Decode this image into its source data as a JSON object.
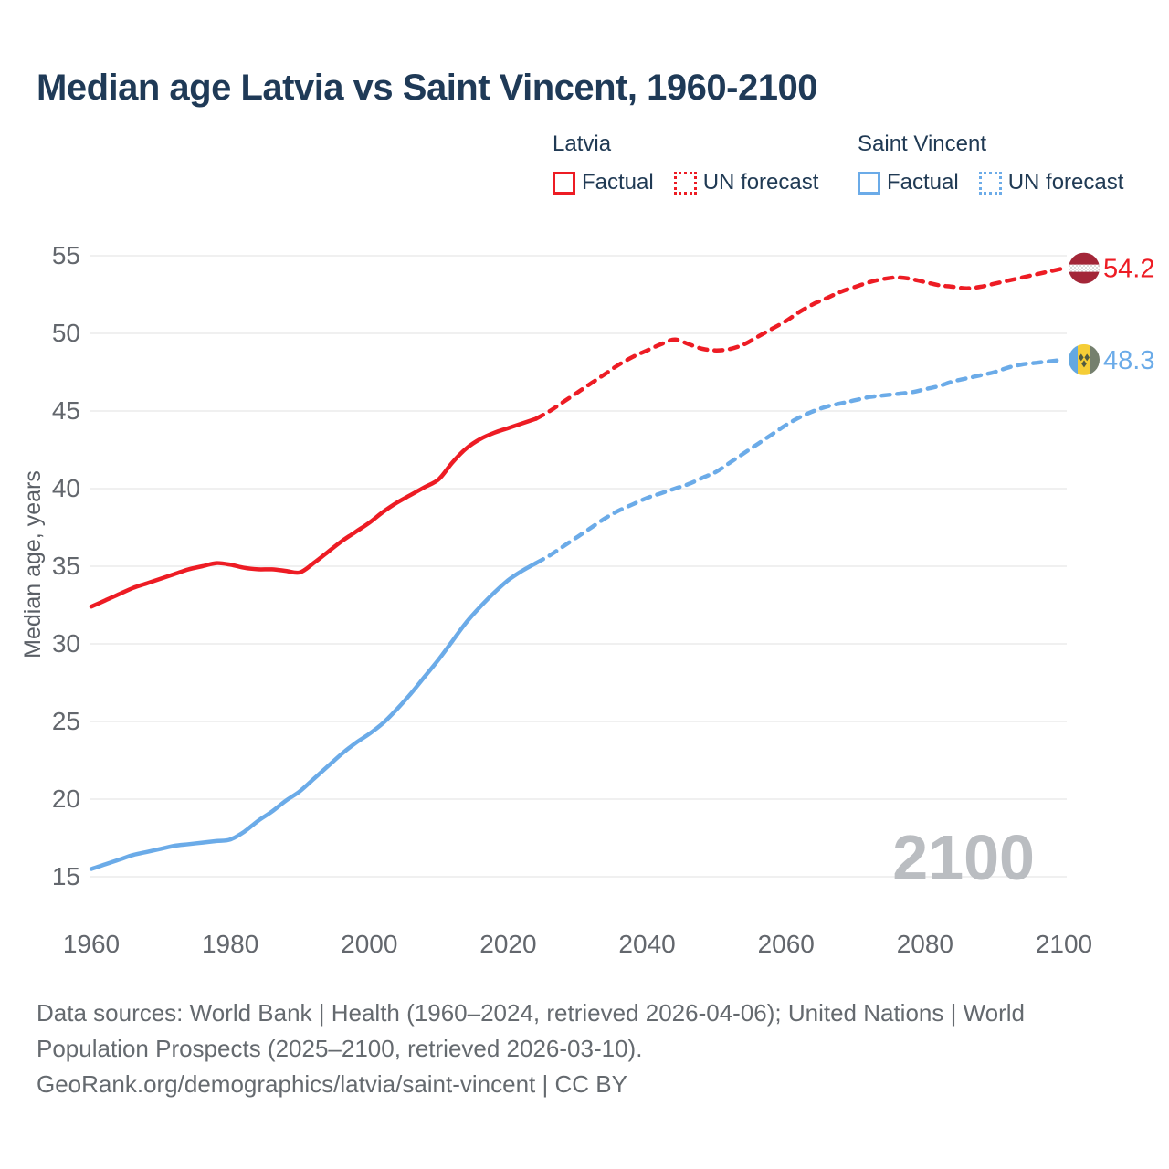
{
  "title": "Median age Latvia vs Saint Vincent, 1960-2100",
  "legend": {
    "groups": [
      {
        "country": "Latvia",
        "factual_label": "Factual",
        "forecast_label": "UN forecast",
        "color": "#ed1c24"
      },
      {
        "country": "Saint Vincent",
        "factual_label": "Factual",
        "forecast_label": "UN forecast",
        "color": "#6babe8"
      }
    ]
  },
  "end_labels": [
    {
      "series": "Latvia",
      "value": "54.2",
      "color": "#ed1c24",
      "flag": "latvia-flag"
    },
    {
      "series": "Saint Vincent",
      "value": "48.3",
      "color": "#6babe8",
      "flag": "saint-vincent-flag"
    }
  ],
  "watermark": "2100",
  "footer": {
    "line1": "Data sources: World Bank | Health (1960–2024, retrieved 2026-04-06); United Nations | World",
    "line2": "Population Prospects (2025–2100, retrieved 2026-03-10).",
    "line3": "GeoRank.org/demographics/latvia/saint-vincent | CC BY"
  },
  "colors": {
    "latvia": "#ed1c24",
    "saint_vincent": "#6babe8",
    "title_text": "#1f3a57",
    "tick_text": "#63676d",
    "footer_text": "#656a6f",
    "gridline": "#ebebeb",
    "watermark": "#babdc1",
    "latvia_flag_carmine": "#a32638",
    "sv_flag_blue": "#64a8e0",
    "sv_flag_yellow": "#f5cd36",
    "sv_flag_green": "#75806e",
    "sv_flag_diamond": "#4f5a41"
  },
  "chart_data": {
    "type": "line",
    "title": "Median age Latvia vs Saint Vincent, 1960-2100",
    "xlabel": "",
    "ylabel": "Median age, years",
    "x_ticks": [
      1960,
      1980,
      2000,
      2020,
      2040,
      2060,
      2080,
      2100
    ],
    "y_ticks": [
      15,
      20,
      25,
      30,
      35,
      40,
      45,
      50,
      55
    ],
    "xlim": [
      1960,
      2100
    ],
    "ylim": [
      15,
      55
    ],
    "grid": "horizontal-only",
    "legend_position": "top-right",
    "series": [
      {
        "name": "Latvia factual",
        "color": "#ed1c24",
        "dashed": false,
        "points": [
          [
            1960,
            32.4
          ],
          [
            1962,
            32.8
          ],
          [
            1964,
            33.2
          ],
          [
            1966,
            33.6
          ],
          [
            1968,
            33.9
          ],
          [
            1970,
            34.2
          ],
          [
            1972,
            34.5
          ],
          [
            1974,
            34.8
          ],
          [
            1976,
            35.0
          ],
          [
            1978,
            35.2
          ],
          [
            1980,
            35.1
          ],
          [
            1982,
            34.9
          ],
          [
            1984,
            34.8
          ],
          [
            1986,
            34.8
          ],
          [
            1988,
            34.7
          ],
          [
            1990,
            34.6
          ],
          [
            1992,
            35.2
          ],
          [
            1994,
            35.9
          ],
          [
            1996,
            36.6
          ],
          [
            1998,
            37.2
          ],
          [
            2000,
            37.8
          ],
          [
            2002,
            38.5
          ],
          [
            2004,
            39.1
          ],
          [
            2006,
            39.6
          ],
          [
            2008,
            40.1
          ],
          [
            2010,
            40.6
          ],
          [
            2012,
            41.7
          ],
          [
            2014,
            42.6
          ],
          [
            2016,
            43.2
          ],
          [
            2018,
            43.6
          ],
          [
            2020,
            43.9
          ],
          [
            2022,
            44.2
          ],
          [
            2024,
            44.5
          ]
        ]
      },
      {
        "name": "Latvia UN forecast",
        "color": "#ed1c24",
        "dashed": true,
        "points": [
          [
            2024,
            44.5
          ],
          [
            2026,
            45.0
          ],
          [
            2028,
            45.6
          ],
          [
            2030,
            46.2
          ],
          [
            2032,
            46.8
          ],
          [
            2034,
            47.4
          ],
          [
            2036,
            48.0
          ],
          [
            2038,
            48.5
          ],
          [
            2040,
            48.9
          ],
          [
            2042,
            49.3
          ],
          [
            2044,
            49.6
          ],
          [
            2046,
            49.3
          ],
          [
            2048,
            49.0
          ],
          [
            2050,
            48.9
          ],
          [
            2052,
            49.0
          ],
          [
            2054,
            49.3
          ],
          [
            2056,
            49.8
          ],
          [
            2058,
            50.3
          ],
          [
            2060,
            50.8
          ],
          [
            2062,
            51.4
          ],
          [
            2064,
            51.9
          ],
          [
            2066,
            52.3
          ],
          [
            2068,
            52.7
          ],
          [
            2070,
            53.0
          ],
          [
            2072,
            53.3
          ],
          [
            2074,
            53.5
          ],
          [
            2076,
            53.6
          ],
          [
            2078,
            53.5
          ],
          [
            2080,
            53.3
          ],
          [
            2082,
            53.1
          ],
          [
            2084,
            53.0
          ],
          [
            2086,
            52.9
          ],
          [
            2088,
            53.0
          ],
          [
            2090,
            53.2
          ],
          [
            2092,
            53.4
          ],
          [
            2094,
            53.6
          ],
          [
            2096,
            53.8
          ],
          [
            2098,
            54.0
          ],
          [
            2100,
            54.2
          ]
        ]
      },
      {
        "name": "Saint Vincent factual",
        "color": "#6babe8",
        "dashed": false,
        "points": [
          [
            1960,
            15.5
          ],
          [
            1962,
            15.8
          ],
          [
            1964,
            16.1
          ],
          [
            1966,
            16.4
          ],
          [
            1968,
            16.6
          ],
          [
            1970,
            16.8
          ],
          [
            1972,
            17.0
          ],
          [
            1974,
            17.1
          ],
          [
            1976,
            17.2
          ],
          [
            1978,
            17.3
          ],
          [
            1980,
            17.4
          ],
          [
            1982,
            17.9
          ],
          [
            1984,
            18.6
          ],
          [
            1986,
            19.2
          ],
          [
            1988,
            19.9
          ],
          [
            1990,
            20.5
          ],
          [
            1992,
            21.3
          ],
          [
            1994,
            22.1
          ],
          [
            1996,
            22.9
          ],
          [
            1998,
            23.6
          ],
          [
            2000,
            24.2
          ],
          [
            2002,
            24.9
          ],
          [
            2004,
            25.8
          ],
          [
            2006,
            26.8
          ],
          [
            2008,
            27.9
          ],
          [
            2010,
            29.0
          ],
          [
            2012,
            30.2
          ],
          [
            2014,
            31.4
          ],
          [
            2016,
            32.4
          ],
          [
            2018,
            33.3
          ],
          [
            2020,
            34.1
          ],
          [
            2022,
            34.7
          ],
          [
            2024,
            35.2
          ]
        ]
      },
      {
        "name": "Saint Vincent UN forecast",
        "color": "#6babe8",
        "dashed": true,
        "points": [
          [
            2024,
            35.2
          ],
          [
            2026,
            35.7
          ],
          [
            2028,
            36.3
          ],
          [
            2030,
            36.9
          ],
          [
            2032,
            37.5
          ],
          [
            2034,
            38.1
          ],
          [
            2036,
            38.6
          ],
          [
            2038,
            39.0
          ],
          [
            2040,
            39.4
          ],
          [
            2042,
            39.7
          ],
          [
            2044,
            40.0
          ],
          [
            2046,
            40.3
          ],
          [
            2048,
            40.7
          ],
          [
            2050,
            41.1
          ],
          [
            2052,
            41.7
          ],
          [
            2054,
            42.3
          ],
          [
            2056,
            42.9
          ],
          [
            2058,
            43.5
          ],
          [
            2060,
            44.1
          ],
          [
            2062,
            44.6
          ],
          [
            2064,
            45.0
          ],
          [
            2066,
            45.3
          ],
          [
            2068,
            45.5
          ],
          [
            2070,
            45.7
          ],
          [
            2072,
            45.9
          ],
          [
            2074,
            46.0
          ],
          [
            2076,
            46.1
          ],
          [
            2078,
            46.2
          ],
          [
            2080,
            46.4
          ],
          [
            2082,
            46.6
          ],
          [
            2084,
            46.9
          ],
          [
            2086,
            47.1
          ],
          [
            2088,
            47.3
          ],
          [
            2090,
            47.5
          ],
          [
            2092,
            47.8
          ],
          [
            2094,
            48.0
          ],
          [
            2096,
            48.1
          ],
          [
            2098,
            48.2
          ],
          [
            2100,
            48.3
          ]
        ]
      }
    ],
    "end_annotations": [
      {
        "series": "Latvia",
        "year": 2100,
        "value": 54.2
      },
      {
        "series": "Saint Vincent",
        "year": 2100,
        "value": 48.3
      }
    ]
  }
}
